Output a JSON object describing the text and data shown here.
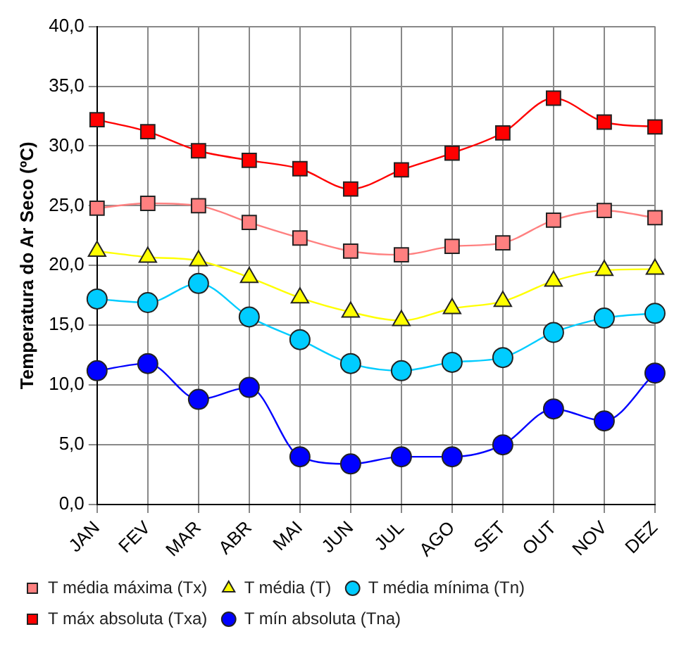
{
  "chart_data": {
    "type": "line",
    "ylabel": "Temperatura do Ar Seco (ºC)",
    "categories": [
      "JAN",
      "FEV",
      "MAR",
      "ABR",
      "MAI",
      "JUN",
      "JUL",
      "AGO",
      "SET",
      "OUT",
      "NOV",
      "DEZ"
    ],
    "series": [
      {
        "name": "T média máxima (Tx)",
        "color": "#ff8080",
        "marker": "square",
        "values": [
          24.8,
          25.2,
          25.0,
          23.6,
          22.3,
          21.2,
          20.9,
          21.6,
          21.9,
          23.8,
          24.6,
          24.0
        ]
      },
      {
        "name": "T média (T)",
        "color": "#ffff00",
        "marker": "triangle",
        "values": [
          21.2,
          20.7,
          20.4,
          19.0,
          17.3,
          16.1,
          15.4,
          16.4,
          17.0,
          18.7,
          19.6,
          19.7
        ]
      },
      {
        "name": "T média mínima (Tn)",
        "color": "#00ccff",
        "marker": "circle",
        "values": [
          17.2,
          16.9,
          18.5,
          15.7,
          13.8,
          11.8,
          11.2,
          11.9,
          12.3,
          14.4,
          15.6,
          16.0
        ]
      },
      {
        "name": "T máx absoluta (Txa)",
        "color": "#ff0000",
        "marker": "square",
        "values": [
          32.2,
          31.2,
          29.6,
          28.8,
          28.1,
          26.4,
          28.0,
          29.4,
          31.1,
          34.0,
          32.0,
          31.6
        ]
      },
      {
        "name": "T mín absoluta (Tna)",
        "color": "#0000ff",
        "marker": "circle",
        "values": [
          11.2,
          11.8,
          8.8,
          9.8,
          4.0,
          3.4,
          4.0,
          4.0,
          5.0,
          8.0,
          7.0,
          11.0
        ]
      }
    ],
    "ylim": [
      0,
      40
    ],
    "yticks": [
      {
        "value": 0,
        "label": "0,0"
      },
      {
        "value": 5,
        "label": "5,0"
      },
      {
        "value": 10,
        "label": "10,0"
      },
      {
        "value": 15,
        "label": "15,0"
      },
      {
        "value": 20,
        "label": "20,0"
      },
      {
        "value": 25,
        "label": "25,0"
      },
      {
        "value": 30,
        "label": "30,0"
      },
      {
        "value": 35,
        "label": "35,0"
      },
      {
        "value": 40,
        "label": "40,0"
      }
    ],
    "grid": true,
    "legend": "bottom"
  }
}
